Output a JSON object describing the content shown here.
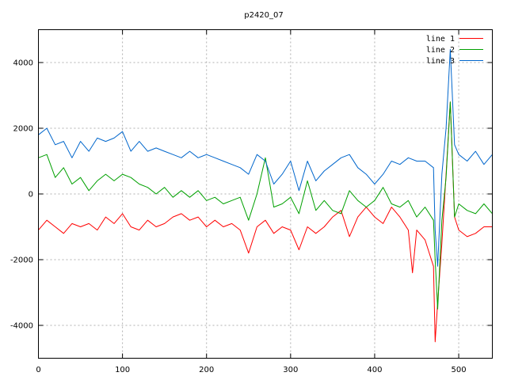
{
  "chart_data": {
    "type": "line",
    "title": "p2420_07",
    "xlabel": "",
    "ylabel": "",
    "xlim": [
      0,
      540
    ],
    "ylim": [
      -5000,
      5000
    ],
    "x_ticks": [
      0,
      100,
      200,
      300,
      400,
      500
    ],
    "y_ticks": [
      -4000,
      -2000,
      0,
      2000,
      4000
    ],
    "grid": true,
    "legend_position": "top-right",
    "series": [
      {
        "name": "line 1",
        "color": "#ff0000",
        "x": [
          0,
          10,
          20,
          30,
          40,
          50,
          60,
          70,
          80,
          90,
          100,
          110,
          120,
          130,
          140,
          150,
          160,
          170,
          180,
          190,
          200,
          210,
          220,
          230,
          240,
          250,
          260,
          270,
          280,
          290,
          300,
          310,
          320,
          330,
          340,
          350,
          360,
          370,
          380,
          390,
          400,
          410,
          420,
          430,
          440,
          445,
          450,
          460,
          470,
          472,
          475,
          480,
          485,
          490,
          495,
          500,
          510,
          520,
          530,
          540
        ],
        "y": [
          -1100,
          -800,
          -1000,
          -1200,
          -900,
          -1000,
          -900,
          -1100,
          -700,
          -900,
          -600,
          -1000,
          -1100,
          -800,
          -1000,
          -900,
          -700,
          -600,
          -800,
          -700,
          -1000,
          -800,
          -1000,
          -900,
          -1100,
          -1800,
          -1000,
          -800,
          -1200,
          -1000,
          -1100,
          -1700,
          -1000,
          -1200,
          -1000,
          -700,
          -500,
          -1300,
          -700,
          -400,
          -700,
          -900,
          -400,
          -700,
          -1100,
          -2400,
          -1100,
          -1400,
          -2200,
          -4500,
          -3300,
          -1500,
          600,
          2800,
          -700,
          -1100,
          -1300,
          -1200,
          -1000,
          -1000
        ]
      },
      {
        "name": "line 2",
        "color": "#00a000",
        "x": [
          0,
          10,
          20,
          30,
          40,
          50,
          60,
          70,
          80,
          90,
          100,
          110,
          120,
          130,
          140,
          150,
          160,
          170,
          180,
          190,
          200,
          210,
          220,
          230,
          240,
          250,
          260,
          270,
          280,
          290,
          300,
          310,
          320,
          330,
          340,
          350,
          360,
          370,
          380,
          390,
          400,
          410,
          420,
          430,
          440,
          450,
          460,
          470,
          472,
          475,
          480,
          485,
          490,
          495,
          500,
          510,
          520,
          530,
          540
        ],
        "y": [
          1100,
          1200,
          500,
          800,
          300,
          500,
          100,
          400,
          600,
          400,
          600,
          500,
          300,
          200,
          0,
          200,
          -100,
          100,
          -100,
          100,
          -200,
          -100,
          -300,
          -200,
          -100,
          -800,
          0,
          1100,
          -400,
          -300,
          -100,
          -600,
          400,
          -500,
          -200,
          -500,
          -600,
          100,
          -200,
          -400,
          -200,
          200,
          -300,
          -400,
          -200,
          -700,
          -400,
          -800,
          -2000,
          -3500,
          -800,
          500,
          2800,
          -700,
          -300,
          -500,
          -600,
          -300,
          -600
        ]
      },
      {
        "name": "line 3",
        "color": "#0066cc",
        "x": [
          0,
          10,
          20,
          30,
          40,
          50,
          60,
          70,
          80,
          90,
          100,
          110,
          120,
          130,
          140,
          150,
          160,
          170,
          180,
          190,
          200,
          210,
          220,
          230,
          240,
          250,
          260,
          270,
          280,
          290,
          300,
          310,
          320,
          330,
          340,
          350,
          360,
          370,
          380,
          390,
          400,
          410,
          420,
          430,
          440,
          450,
          460,
          470,
          472,
          475,
          480,
          485,
          490,
          495,
          500,
          510,
          520,
          530,
          540
        ],
        "y": [
          1800,
          2000,
          1500,
          1600,
          1100,
          1600,
          1300,
          1700,
          1600,
          1700,
          1900,
          1300,
          1600,
          1300,
          1400,
          1300,
          1200,
          1100,
          1300,
          1100,
          1200,
          1100,
          1000,
          900,
          800,
          600,
          1200,
          1000,
          300,
          600,
          1000,
          100,
          1000,
          400,
          700,
          900,
          1100,
          1200,
          800,
          600,
          300,
          600,
          1000,
          900,
          1100,
          1000,
          1000,
          800,
          -1100,
          -2200,
          600,
          2000,
          4400,
          1500,
          1200,
          1000,
          1300,
          900,
          1200
        ]
      }
    ]
  }
}
